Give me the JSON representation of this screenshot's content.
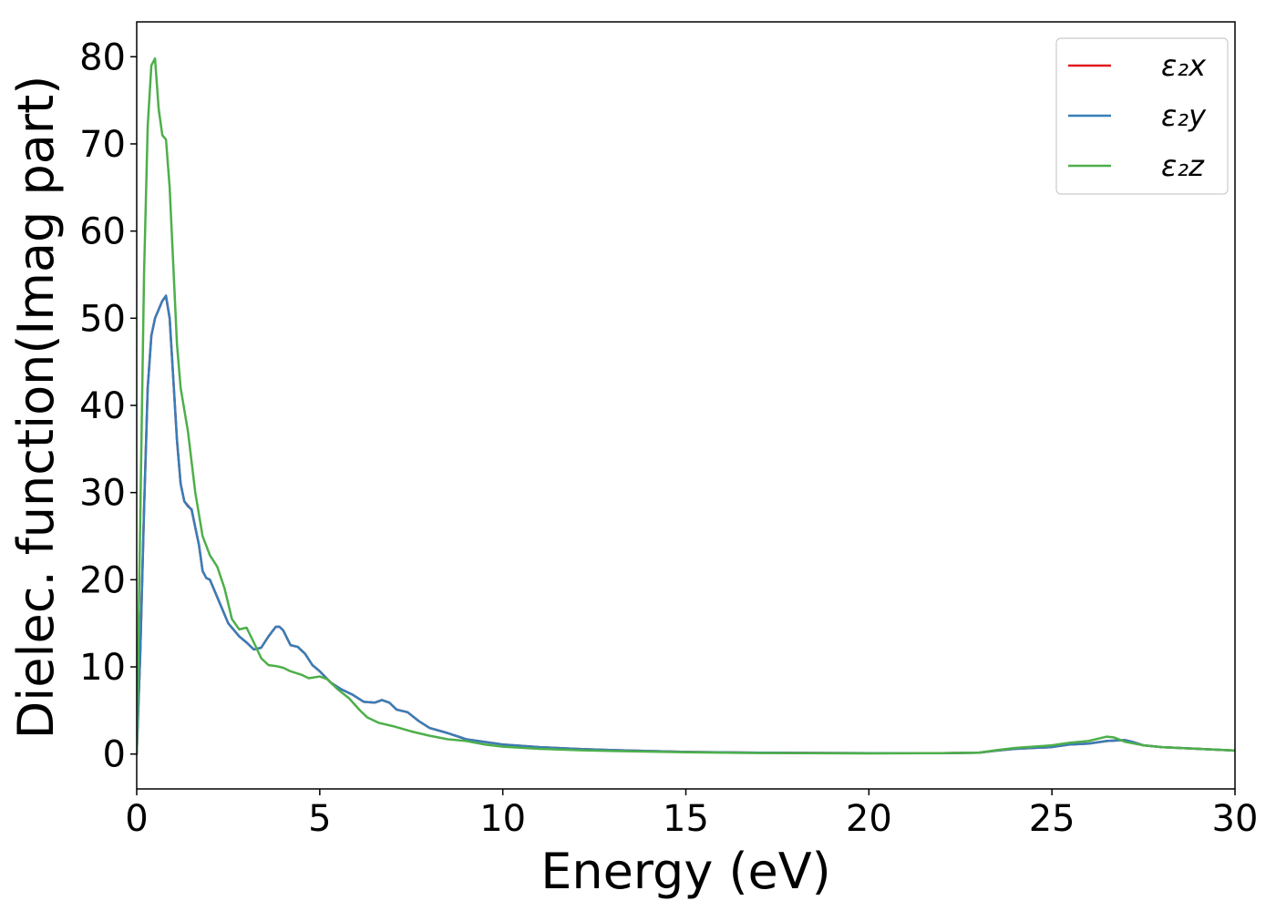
{
  "chart_data": {
    "type": "line",
    "title": "",
    "xlabel": "Energy (eV)",
    "ylabel": "Dielec. function(Imag part)",
    "xlim": [
      0,
      30
    ],
    "ylim": [
      -4,
      84
    ],
    "xticks": [
      0,
      5,
      10,
      15,
      20,
      25,
      30
    ],
    "yticks": [
      0,
      10,
      20,
      30,
      40,
      50,
      60,
      70,
      80
    ],
    "grid": false,
    "legend_position": "top-right",
    "series": [
      {
        "name": "ε₂x",
        "color": "#e41a1c",
        "points": [
          [
            0,
            0
          ],
          [
            0.1,
            12
          ],
          [
            0.2,
            28
          ],
          [
            0.3,
            42
          ],
          [
            0.4,
            48
          ],
          [
            0.5,
            50
          ],
          [
            0.6,
            51
          ],
          [
            0.7,
            52
          ],
          [
            0.8,
            52.5
          ],
          [
            0.9,
            50
          ],
          [
            1.0,
            43
          ],
          [
            1.1,
            36
          ],
          [
            1.2,
            31
          ],
          [
            1.3,
            29
          ],
          [
            1.4,
            28.5
          ],
          [
            1.5,
            28
          ],
          [
            1.6,
            26
          ],
          [
            1.7,
            24
          ],
          [
            1.8,
            21
          ],
          [
            1.9,
            20.2
          ],
          [
            2.0,
            20
          ],
          [
            2.2,
            18
          ],
          [
            2.5,
            15
          ],
          [
            2.8,
            13.5
          ],
          [
            3.0,
            12.8
          ],
          [
            3.2,
            12
          ],
          [
            3.4,
            12.2
          ],
          [
            3.6,
            13.5
          ],
          [
            3.8,
            14.6
          ],
          [
            3.9,
            14.6
          ],
          [
            4.0,
            14.2
          ],
          [
            4.2,
            12.5
          ],
          [
            4.4,
            12.3
          ],
          [
            4.6,
            11.5
          ],
          [
            4.8,
            10.2
          ],
          [
            5.0,
            9.5
          ],
          [
            5.3,
            8.2
          ],
          [
            5.6,
            7.4
          ],
          [
            5.9,
            6.8
          ],
          [
            6.2,
            6.0
          ],
          [
            6.5,
            5.9
          ],
          [
            6.7,
            6.2
          ],
          [
            6.9,
            5.9
          ],
          [
            7.1,
            5.1
          ],
          [
            7.4,
            4.8
          ],
          [
            7.7,
            3.8
          ],
          [
            8.0,
            3.0
          ],
          [
            8.5,
            2.4
          ],
          [
            9.0,
            1.7
          ],
          [
            9.5,
            1.4
          ],
          [
            10.0,
            1.1
          ],
          [
            11.0,
            0.8
          ],
          [
            12.0,
            0.6
          ],
          [
            13.0,
            0.45
          ],
          [
            15.0,
            0.25
          ],
          [
            17.0,
            0.15
          ],
          [
            20.0,
            0.1
          ],
          [
            22.0,
            0.1
          ],
          [
            23.0,
            0.15
          ],
          [
            23.5,
            0.4
          ],
          [
            24.0,
            0.6
          ],
          [
            25.0,
            0.8
          ],
          [
            25.5,
            1.1
          ],
          [
            26.0,
            1.2
          ],
          [
            26.5,
            1.5
          ],
          [
            27.0,
            1.6
          ],
          [
            27.2,
            1.4
          ],
          [
            27.5,
            1.0
          ],
          [
            28.0,
            0.8
          ],
          [
            29.0,
            0.6
          ],
          [
            30.0,
            0.4
          ]
        ]
      },
      {
        "name": "ε₂y",
        "color": "#377eb8",
        "points": [
          [
            0,
            0
          ],
          [
            0.1,
            12
          ],
          [
            0.2,
            28
          ],
          [
            0.3,
            42
          ],
          [
            0.4,
            48
          ],
          [
            0.5,
            50
          ],
          [
            0.6,
            51
          ],
          [
            0.7,
            52
          ],
          [
            0.8,
            52.6
          ],
          [
            0.9,
            50
          ],
          [
            1.0,
            43
          ],
          [
            1.1,
            36
          ],
          [
            1.2,
            31
          ],
          [
            1.3,
            29
          ],
          [
            1.4,
            28.4
          ],
          [
            1.5,
            28.1
          ],
          [
            1.6,
            26
          ],
          [
            1.7,
            24
          ],
          [
            1.8,
            21
          ],
          [
            1.9,
            20.2
          ],
          [
            2.0,
            20
          ],
          [
            2.2,
            18
          ],
          [
            2.5,
            15
          ],
          [
            2.8,
            13.5
          ],
          [
            3.0,
            12.8
          ],
          [
            3.2,
            12
          ],
          [
            3.4,
            12.2
          ],
          [
            3.6,
            13.5
          ],
          [
            3.8,
            14.6
          ],
          [
            3.9,
            14.6
          ],
          [
            4.0,
            14.2
          ],
          [
            4.2,
            12.5
          ],
          [
            4.4,
            12.3
          ],
          [
            4.6,
            11.5
          ],
          [
            4.8,
            10.2
          ],
          [
            5.0,
            9.5
          ],
          [
            5.3,
            8.2
          ],
          [
            5.6,
            7.4
          ],
          [
            5.9,
            6.8
          ],
          [
            6.2,
            6.0
          ],
          [
            6.5,
            5.9
          ],
          [
            6.7,
            6.2
          ],
          [
            6.9,
            5.9
          ],
          [
            7.1,
            5.1
          ],
          [
            7.4,
            4.8
          ],
          [
            7.7,
            3.8
          ],
          [
            8.0,
            3.0
          ],
          [
            8.5,
            2.4
          ],
          [
            9.0,
            1.7
          ],
          [
            9.5,
            1.4
          ],
          [
            10.0,
            1.1
          ],
          [
            11.0,
            0.8
          ],
          [
            12.0,
            0.6
          ],
          [
            13.0,
            0.45
          ],
          [
            15.0,
            0.25
          ],
          [
            17.0,
            0.15
          ],
          [
            20.0,
            0.1
          ],
          [
            22.0,
            0.1
          ],
          [
            23.0,
            0.15
          ],
          [
            23.5,
            0.4
          ],
          [
            24.0,
            0.6
          ],
          [
            25.0,
            0.8
          ],
          [
            25.5,
            1.1
          ],
          [
            26.0,
            1.2
          ],
          [
            26.5,
            1.5
          ],
          [
            27.0,
            1.6
          ],
          [
            27.2,
            1.4
          ],
          [
            27.5,
            1.0
          ],
          [
            28.0,
            0.8
          ],
          [
            29.0,
            0.6
          ],
          [
            30.0,
            0.4
          ]
        ]
      },
      {
        "name": "ε₂z",
        "color": "#4daf4a",
        "points": [
          [
            0,
            0
          ],
          [
            0.1,
            28
          ],
          [
            0.2,
            55
          ],
          [
            0.3,
            72
          ],
          [
            0.4,
            79
          ],
          [
            0.5,
            79.8
          ],
          [
            0.6,
            74
          ],
          [
            0.7,
            71
          ],
          [
            0.8,
            70.5
          ],
          [
            0.9,
            65
          ],
          [
            1.0,
            56
          ],
          [
            1.1,
            47
          ],
          [
            1.2,
            42
          ],
          [
            1.4,
            37
          ],
          [
            1.6,
            30
          ],
          [
            1.8,
            25
          ],
          [
            2.0,
            22.8
          ],
          [
            2.2,
            21.5
          ],
          [
            2.4,
            19
          ],
          [
            2.6,
            15.5
          ],
          [
            2.8,
            14.3
          ],
          [
            3.0,
            14.5
          ],
          [
            3.2,
            12.8
          ],
          [
            3.4,
            11
          ],
          [
            3.6,
            10.2
          ],
          [
            3.8,
            10.1
          ],
          [
            4.0,
            9.9
          ],
          [
            4.2,
            9.5
          ],
          [
            4.5,
            9.1
          ],
          [
            4.7,
            8.7
          ],
          [
            5.0,
            8.9
          ],
          [
            5.2,
            8.6
          ],
          [
            5.5,
            7.4
          ],
          [
            5.8,
            6.4
          ],
          [
            6.1,
            5.0
          ],
          [
            6.3,
            4.2
          ],
          [
            6.6,
            3.6
          ],
          [
            7.0,
            3.2
          ],
          [
            7.5,
            2.6
          ],
          [
            8.0,
            2.1
          ],
          [
            8.5,
            1.7
          ],
          [
            9.0,
            1.5
          ],
          [
            9.5,
            1.1
          ],
          [
            10.0,
            0.85
          ],
          [
            11.0,
            0.6
          ],
          [
            12.0,
            0.45
          ],
          [
            13.0,
            0.35
          ],
          [
            15.0,
            0.2
          ],
          [
            17.0,
            0.12
          ],
          [
            20.0,
            0.08
          ],
          [
            22.0,
            0.1
          ],
          [
            23.0,
            0.15
          ],
          [
            23.5,
            0.45
          ],
          [
            24.0,
            0.7
          ],
          [
            25.0,
            1.0
          ],
          [
            25.5,
            1.3
          ],
          [
            26.0,
            1.5
          ],
          [
            26.5,
            2.0
          ],
          [
            26.7,
            1.9
          ],
          [
            27.0,
            1.4
          ],
          [
            27.5,
            1.0
          ],
          [
            28.0,
            0.8
          ],
          [
            29.0,
            0.6
          ],
          [
            30.0,
            0.4
          ]
        ]
      }
    ]
  }
}
